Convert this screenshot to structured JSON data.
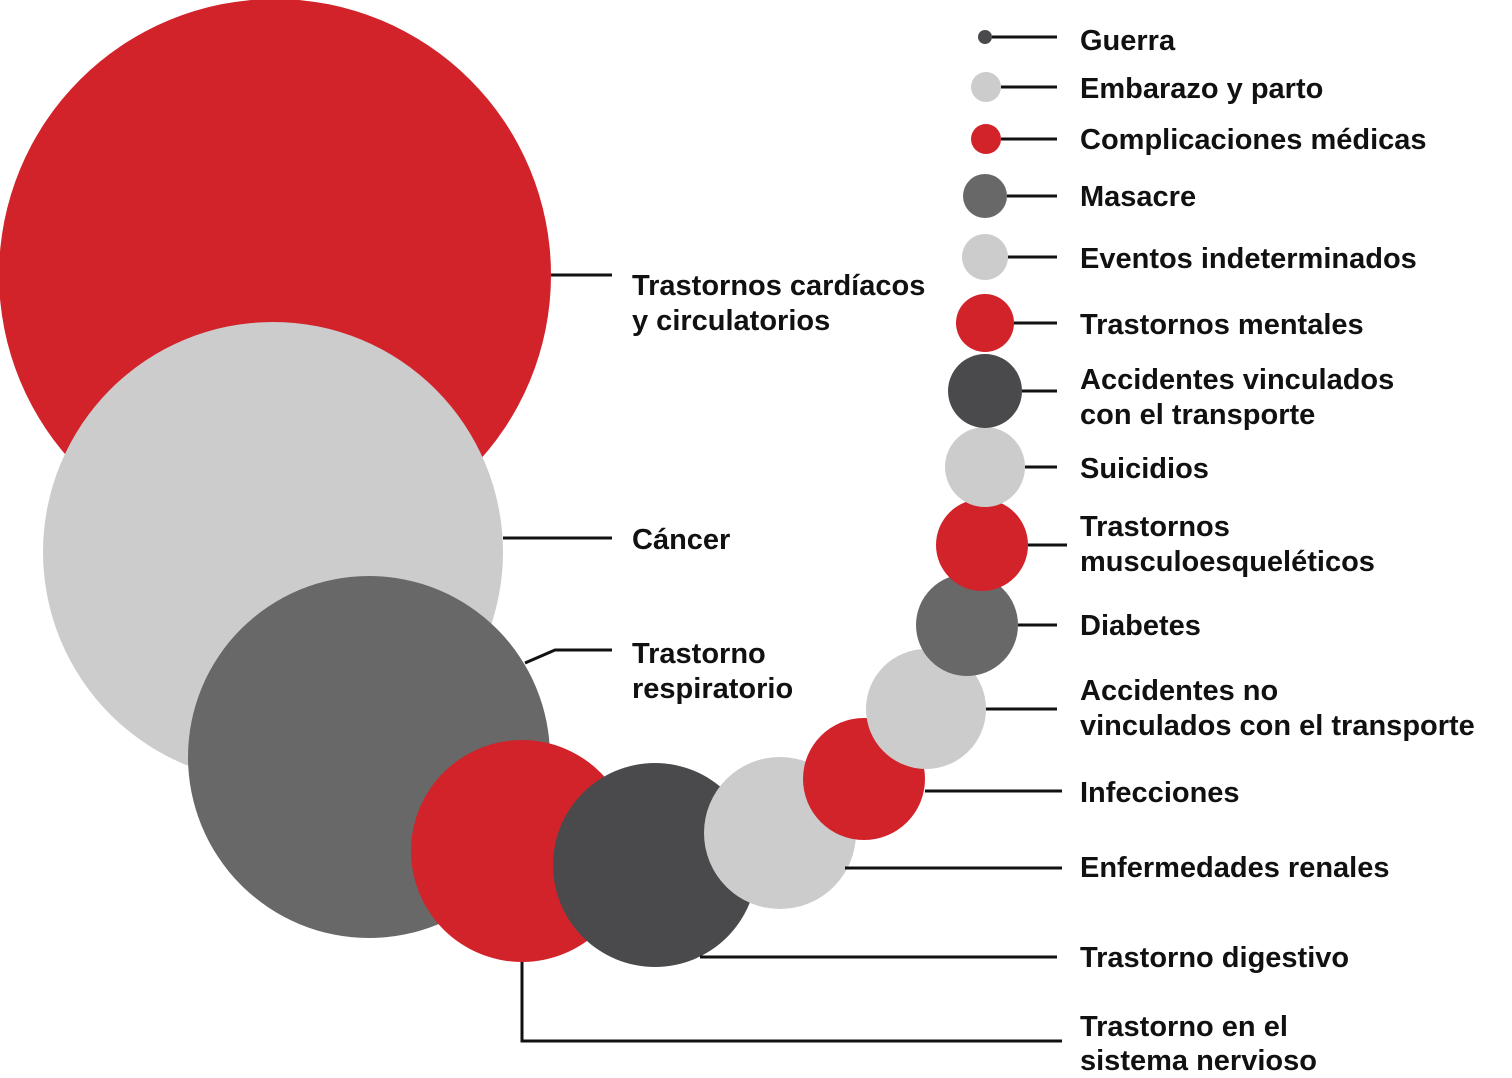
{
  "colors": {
    "red": "#d2232a",
    "light_gray": "#cccccc",
    "mid_gray": "#686868",
    "dark_gray": "#4a4a4d",
    "line": "#111111",
    "text": "#111111"
  },
  "labels": [
    [
      "Trastornos cardíacos",
      "y circulatorios"
    ],
    [
      "Cáncer"
    ],
    [
      "Trastorno",
      "respiratorio"
    ],
    [
      "Trastorno en el",
      "sistema nervioso"
    ],
    [
      "Trastorno digestivo"
    ],
    [
      "Enfermedades renales"
    ],
    [
      "Infecciones"
    ],
    [
      "Accidentes no",
      "vinculados con el transporte"
    ],
    [
      "Diabetes"
    ],
    [
      "Trastornos",
      "musculoesqueléticos"
    ],
    [
      "Suicidios"
    ],
    [
      "Accidentes vinculados",
      "con el transporte"
    ],
    [
      "Trastornos mentales"
    ],
    [
      "Eventos indeterminados"
    ],
    [
      "Masacre"
    ],
    [
      "Complicaciones médicas"
    ],
    [
      "Embarazo y parto"
    ],
    [
      "Guerra"
    ]
  ],
  "categories": [
    {
      "color": "red"
    },
    {
      "color": "light_gray"
    },
    {
      "color": "mid_gray"
    },
    {
      "color": "red"
    },
    {
      "color": "dark_gray"
    },
    {
      "color": "light_gray"
    },
    {
      "color": "red"
    },
    {
      "color": "light_gray"
    },
    {
      "color": "mid_gray"
    },
    {
      "color": "red"
    },
    {
      "color": "light_gray"
    },
    {
      "color": "dark_gray"
    },
    {
      "color": "red"
    },
    {
      "color": "light_gray"
    },
    {
      "color": "mid_gray"
    },
    {
      "color": "red"
    },
    {
      "color": "light_gray"
    },
    {
      "color": "dark_gray"
    }
  ]
}
